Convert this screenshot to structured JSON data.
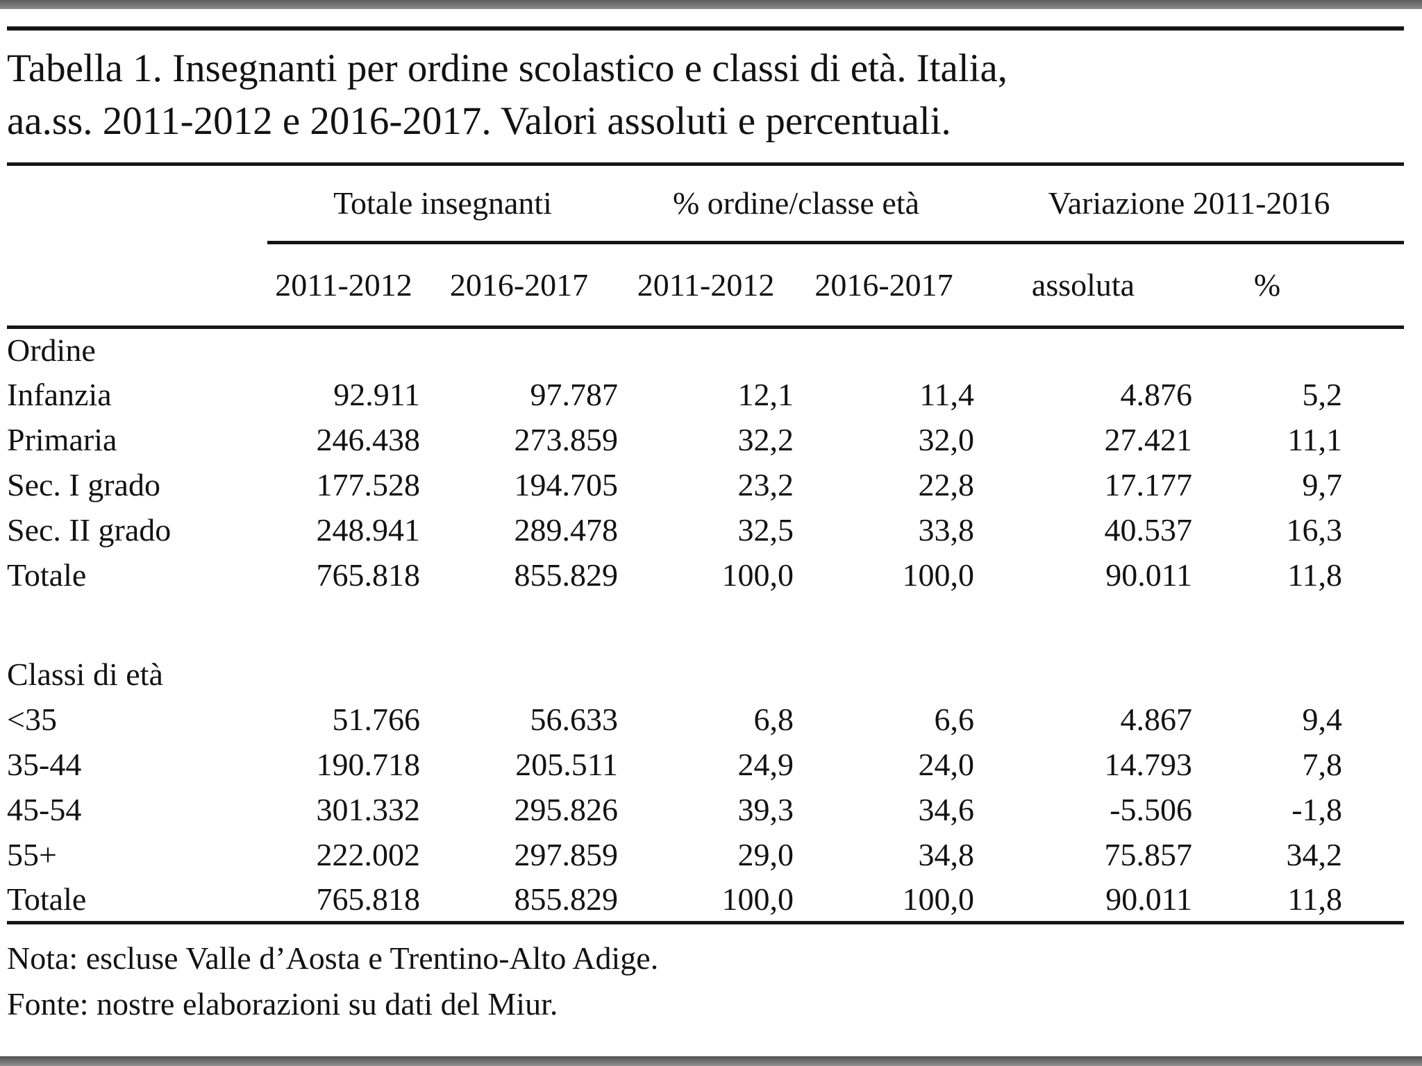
{
  "viewer": {
    "top_bar_color": "#7b7b7b",
    "bottom_bar_color": "#6e6e6e"
  },
  "title": {
    "line1": "Tabella 1. Insegnanti per ordine scolastico e classi di età. Italia,",
    "line2": "aa.ss. 2011-2012 e 2016-2017. Valori assoluti e percentuali."
  },
  "table": {
    "col_groups": [
      "Totale insegnanti",
      "% ordine/classe età",
      "Variazione 2011-2016"
    ],
    "sub_headers": [
      "2011-2012",
      "2016-2017",
      "2011-2012",
      "2016-2017",
      "assoluta",
      "%"
    ],
    "sections": [
      {
        "label": "Ordine",
        "rows": [
          {
            "label": "Infanzia",
            "values": [
              "92.911",
              "97.787",
              "12,1",
              "11,4",
              "4.876",
              "5,2"
            ]
          },
          {
            "label": "Primaria",
            "values": [
              "246.438",
              "273.859",
              "32,2",
              "32,0",
              "27.421",
              "11,1"
            ]
          },
          {
            "label": "Sec. I grado",
            "values": [
              "177.528",
              "194.705",
              "23,2",
              "22,8",
              "17.177",
              "9,7"
            ]
          },
          {
            "label": "Sec. II grado",
            "values": [
              "248.941",
              "289.478",
              "32,5",
              "33,8",
              "40.537",
              "16,3"
            ]
          },
          {
            "label": "Totale",
            "values": [
              "765.818",
              "855.829",
              "100,0",
              "100,0",
              "90.011",
              "11,8"
            ]
          }
        ]
      },
      {
        "label": "Classi di età",
        "rows": [
          {
            "label": "<35",
            "values": [
              "51.766",
              "56.633",
              "6,8",
              "6,6",
              "4.867",
              "9,4"
            ]
          },
          {
            "label": "35-44",
            "values": [
              "190.718",
              "205.511",
              "24,9",
              "24,0",
              "14.793",
              "7,8"
            ]
          },
          {
            "label": "45-54",
            "values": [
              "301.332",
              "295.826",
              "39,3",
              "34,6",
              "-5.506",
              "-1,8"
            ]
          },
          {
            "label": "55+",
            "values": [
              "222.002",
              "297.859",
              "29,0",
              "34,8",
              "75.857",
              "34,2"
            ]
          },
          {
            "label": "Totale",
            "values": [
              "765.818",
              "855.829",
              "100,0",
              "100,0",
              "90.011",
              "11,8"
            ]
          }
        ]
      }
    ]
  },
  "notes": {
    "nota": "Nota: escluse Valle d’Aosta e Trentino-Alto Adige.",
    "fonte": "Fonte: nostre elaborazioni su dati del Miur."
  }
}
